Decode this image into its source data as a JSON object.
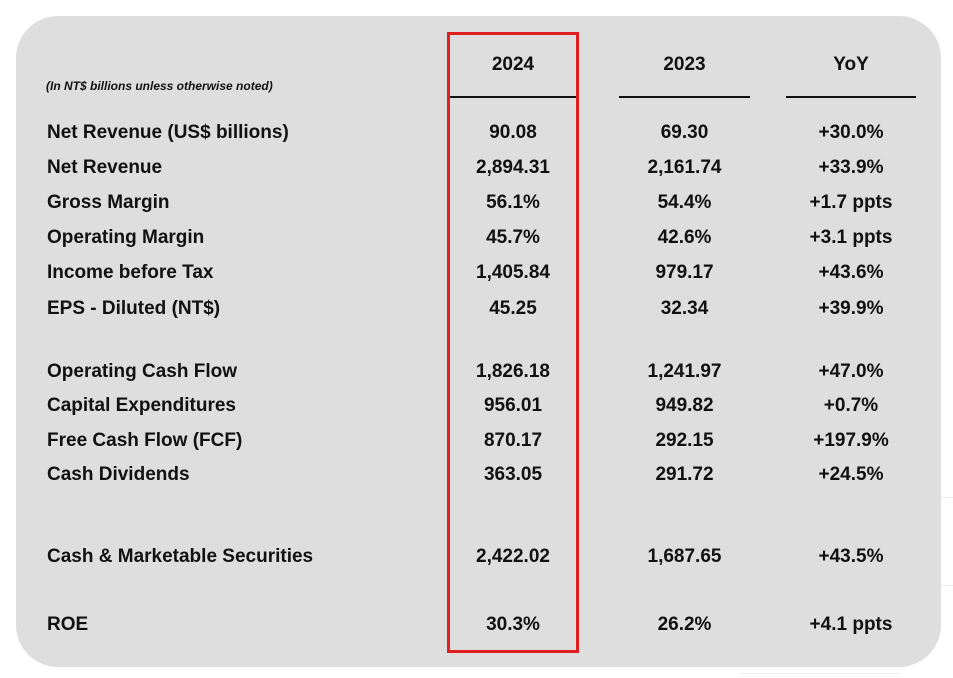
{
  "table": {
    "note": "(In NT$ billions unless otherwise noted)",
    "columns": [
      "2024",
      "2023",
      "YoY"
    ],
    "highlight_color": "#e02020",
    "rows": [
      {
        "label": "Net Revenue (US$ billions)",
        "v2024": "90.08",
        "v2023": "69.30",
        "yoy": "+30.0%"
      },
      {
        "label": "Net Revenue",
        "v2024": "2,894.31",
        "v2023": "2,161.74",
        "yoy": "+33.9%"
      },
      {
        "label": "Gross Margin",
        "v2024": "56.1%",
        "v2023": "54.4%",
        "yoy": "+1.7 ppts"
      },
      {
        "label": "Operating Margin",
        "v2024": "45.7%",
        "v2023": "42.6%",
        "yoy": "+3.1 ppts"
      },
      {
        "label": "Income before Tax",
        "v2024": "1,405.84",
        "v2023": "979.17",
        "yoy": "+43.6%"
      },
      {
        "label": "EPS - Diluted (NT$)",
        "v2024": "45.25",
        "v2023": "32.34",
        "yoy": "+39.9%"
      },
      {
        "label": "Operating Cash Flow",
        "v2024": "1,826.18",
        "v2023": "1,241.97",
        "yoy": "+47.0%"
      },
      {
        "label": "Capital Expenditures",
        "v2024": "956.01",
        "v2023": "949.82",
        "yoy": "+0.7%"
      },
      {
        "label": "Free Cash Flow (FCF)",
        "v2024": "870.17",
        "v2023": "292.15",
        "yoy": "+197.9%"
      },
      {
        "label": "Cash Dividends",
        "v2024": "363.05",
        "v2023": "291.72",
        "yoy": "+24.5%"
      },
      {
        "label": "Cash & Marketable Securities",
        "v2024": "2,422.02",
        "v2023": "1,687.65",
        "yoy": "+43.5%"
      },
      {
        "label": "ROE",
        "v2024": "30.3%",
        "v2023": "26.2%",
        "yoy": "+4.1 ppts"
      }
    ]
  }
}
